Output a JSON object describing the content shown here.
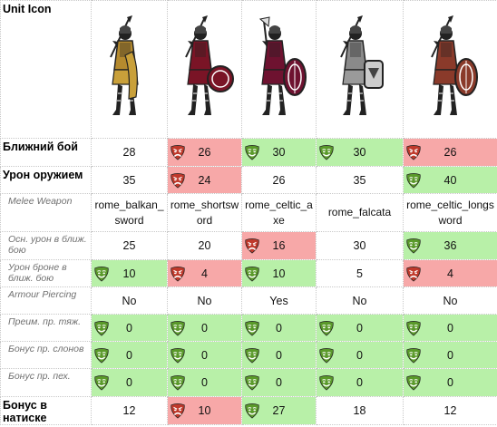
{
  "header": {
    "title": "Unit Icon",
    "units": [
      {
        "icon": "balkan-swordsman-icon",
        "skin": "#b58a2e",
        "cloth": "#c9a03a",
        "shield": "none",
        "weapon": "spear"
      },
      {
        "icon": "shortsword-legionary-icon",
        "skin": "#7a1426",
        "cloth": "#7a1426",
        "shield": "round",
        "weapon": "spear"
      },
      {
        "icon": "celtic-axeman-icon",
        "skin": "#6e1230",
        "cloth": "#6e1230",
        "shield": "oval",
        "weapon": "axe"
      },
      {
        "icon": "falcata-warrior-icon",
        "skin": "#8a8a8a",
        "cloth": "#9a9a9a",
        "shield": "rect",
        "weapon": "spear"
      },
      {
        "icon": "celtic-longsword-icon",
        "skin": "#8a3a2a",
        "cloth": "#8a3a2a",
        "shield": "oval",
        "weapon": "spear"
      }
    ]
  },
  "colors": {
    "good": "#b8f0a8",
    "bad": "#f7a8a8",
    "good_mask": "#5a9a2a",
    "bad_mask": "#c0392b"
  },
  "rows": [
    {
      "label": "Ближний бой",
      "style": "bold",
      "height": 31,
      "cells": [
        {
          "value": "28",
          "mark": ""
        },
        {
          "value": "26",
          "mark": "bad"
        },
        {
          "value": "30",
          "mark": "good"
        },
        {
          "value": "30",
          "mark": "good"
        },
        {
          "value": "26",
          "mark": "bad"
        }
      ]
    },
    {
      "label": "Урон оружием",
      "style": "bold",
      "height": 30,
      "cells": [
        {
          "value": "35",
          "mark": ""
        },
        {
          "value": "24",
          "mark": "bad"
        },
        {
          "value": "26",
          "mark": ""
        },
        {
          "value": "35",
          "mark": ""
        },
        {
          "value": "40",
          "mark": "good"
        }
      ]
    },
    {
      "label": "Melee Weapon",
      "style": "ital",
      "height": 42,
      "cells": [
        {
          "value": "rome_balkan_sword",
          "mark": "",
          "text": true
        },
        {
          "value": "rome_shortsword",
          "mark": "",
          "text": true
        },
        {
          "value": "rome_celtic_axe",
          "mark": "",
          "text": true
        },
        {
          "value": "rome_falcata",
          "mark": "",
          "text": true
        },
        {
          "value": "rome_celtic_longsword",
          "mark": "",
          "text": true
        }
      ]
    },
    {
      "label": "Осн. урон в ближ. бою",
      "style": "ital",
      "height": 31,
      "cells": [
        {
          "value": "25",
          "mark": ""
        },
        {
          "value": "20",
          "mark": ""
        },
        {
          "value": "16",
          "mark": "bad"
        },
        {
          "value": "30",
          "mark": ""
        },
        {
          "value": "36",
          "mark": "good"
        }
      ]
    },
    {
      "label": "Урон броне в ближ. бою",
      "style": "ital",
      "height": 30,
      "cells": [
        {
          "value": "10",
          "mark": "good"
        },
        {
          "value": "4",
          "mark": "bad"
        },
        {
          "value": "10",
          "mark": "good"
        },
        {
          "value": "5",
          "mark": ""
        },
        {
          "value": "4",
          "mark": "bad"
        }
      ]
    },
    {
      "label": "Armour Piercing",
      "style": "ital",
      "height": 30,
      "cells": [
        {
          "value": "No",
          "mark": ""
        },
        {
          "value": "No",
          "mark": ""
        },
        {
          "value": "Yes",
          "mark": ""
        },
        {
          "value": "No",
          "mark": ""
        },
        {
          "value": "No",
          "mark": ""
        }
      ]
    },
    {
      "label": "Преим. пр. тяж.",
      "style": "ital",
      "height": 30,
      "cells": [
        {
          "value": "0",
          "mark": "good"
        },
        {
          "value": "0",
          "mark": "good"
        },
        {
          "value": "0",
          "mark": "good"
        },
        {
          "value": "0",
          "mark": "good"
        },
        {
          "value": "0",
          "mark": "good"
        }
      ]
    },
    {
      "label": "Бонус пр. слонов",
      "style": "ital",
      "height": 30,
      "cells": [
        {
          "value": "0",
          "mark": "good"
        },
        {
          "value": "0",
          "mark": "good"
        },
        {
          "value": "0",
          "mark": "good"
        },
        {
          "value": "0",
          "mark": "good"
        },
        {
          "value": "0",
          "mark": "good"
        }
      ]
    },
    {
      "label": "Бонус пр. пех.",
      "style": "ital",
      "height": 31,
      "cells": [
        {
          "value": "0",
          "mark": "good"
        },
        {
          "value": "0",
          "mark": "good"
        },
        {
          "value": "0",
          "mark": "good"
        },
        {
          "value": "0",
          "mark": "good"
        },
        {
          "value": "0",
          "mark": "good"
        }
      ]
    },
    {
      "label": "Бонус в натиске",
      "style": "bold",
      "height": 31,
      "cells": [
        {
          "value": "12",
          "mark": ""
        },
        {
          "value": "10",
          "mark": "bad"
        },
        {
          "value": "27",
          "mark": "good"
        },
        {
          "value": "18",
          "mark": ""
        },
        {
          "value": "12",
          "mark": ""
        }
      ]
    }
  ]
}
